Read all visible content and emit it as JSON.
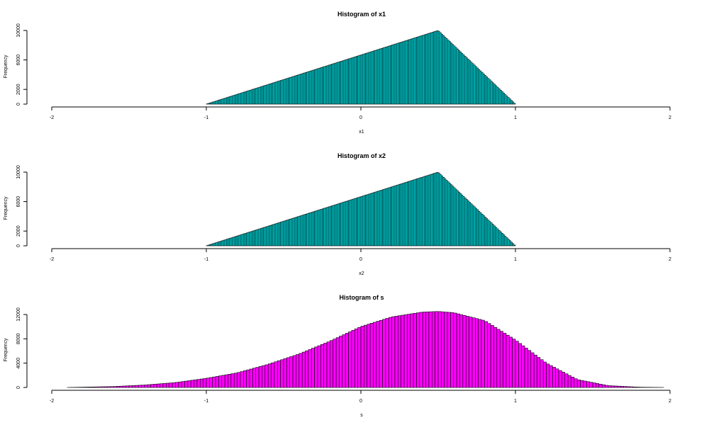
{
  "chart_data": [
    {
      "type": "bar",
      "title": "Histogram of x1",
      "xlabel": "x1",
      "ylabel": "Frequency",
      "fill": "#00CED1",
      "xlim": [
        -2,
        2
      ],
      "xticks": [
        -2,
        -1,
        0,
        1,
        2
      ],
      "ylim": [
        0,
        10000
      ],
      "yticks": [
        0,
        2000,
        6000,
        10000
      ],
      "bin_width": 0.01,
      "bin_range": [
        -1,
        1
      ],
      "peak_bin_center": 0.5,
      "peak_value": 10000,
      "shape": "triangular: rises linearly from ~0 at -1 to 10000 near 0.5, then falls linearly to ~0 at 1"
    },
    {
      "type": "bar",
      "title": "Histogram of x2",
      "xlabel": "x2",
      "ylabel": "Frequency",
      "fill": "#00CED1",
      "xlim": [
        -2,
        2
      ],
      "xticks": [
        -2,
        -1,
        0,
        1,
        2
      ],
      "ylim": [
        0,
        10000
      ],
      "yticks": [
        0,
        2000,
        6000,
        10000
      ],
      "bin_width": 0.01,
      "bin_range": [
        -1,
        1
      ],
      "peak_bin_center": 0.5,
      "peak_value": 10000,
      "shape": "triangular: rises linearly from ~0 at -1 to 10000 near 0.5, then falls linearly to ~0 at 1"
    },
    {
      "type": "bar",
      "title": "Histogram of s",
      "xlabel": "s",
      "ylabel": "Frequency",
      "fill": "#FF00FF",
      "xlim": [
        -2,
        2
      ],
      "xticks": [
        -2,
        -1,
        0,
        1,
        2
      ],
      "ylim": [
        0,
        12000
      ],
      "yticks": [
        0,
        4000,
        8000,
        12000
      ],
      "bin_width": 0.02,
      "bin_range": [
        -1.9,
        1.96
      ],
      "profile_x": [
        -1.9,
        -1.6,
        -1.4,
        -1.2,
        -1.0,
        -0.8,
        -0.6,
        -0.4,
        -0.2,
        0.0,
        0.2,
        0.4,
        0.5,
        0.6,
        0.8,
        1.0,
        1.2,
        1.4,
        1.6,
        1.8,
        1.96
      ],
      "profile_y": [
        0,
        150,
        400,
        800,
        1500,
        2400,
        3800,
        5500,
        7600,
        10000,
        11600,
        12400,
        12500,
        12300,
        11000,
        7800,
        4000,
        1300,
        300,
        50,
        0
      ]
    }
  ]
}
